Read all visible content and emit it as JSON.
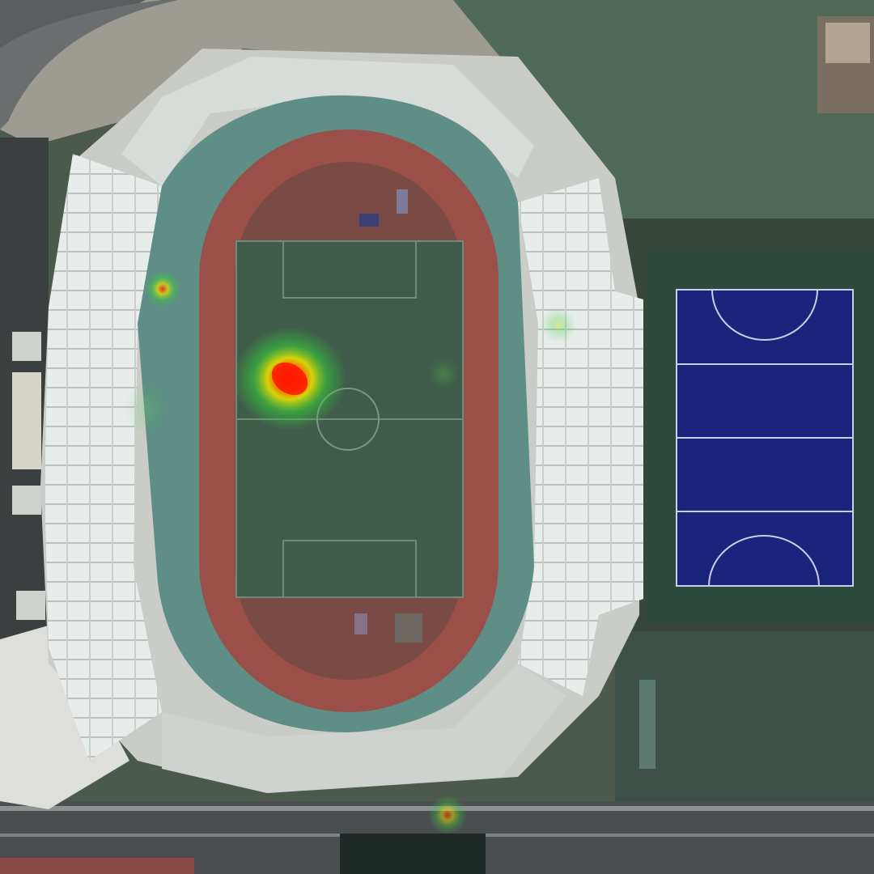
{
  "colors": {
    "ground": "#4a5a4c",
    "road": "#55595a",
    "plaza": "#a7a39a",
    "track": "#9a4e49",
    "track_apron": "#5f8f86",
    "pitch": "#3e5a48",
    "hockey_pitch": "#1a237a",
    "hockey_surround": "#2c4a3d",
    "stand_roof": "#e9edeb",
    "heat_core": "#ff1a00",
    "heat_mid": "#e8e000",
    "heat_edge": "#35d23a"
  },
  "hotspots": [
    {
      "id": "hotspot-main",
      "intensity": 1.0
    },
    {
      "id": "hotspot-west-stand",
      "intensity": 0.85
    },
    {
      "id": "hotspot-east-stand",
      "intensity": 0.45
    },
    {
      "id": "hotspot-midfield",
      "intensity": 0.4
    },
    {
      "id": "hotspot-west-entrance",
      "intensity": 0.35
    },
    {
      "id": "hotspot-south-street",
      "intensity": 0.6
    }
  ]
}
